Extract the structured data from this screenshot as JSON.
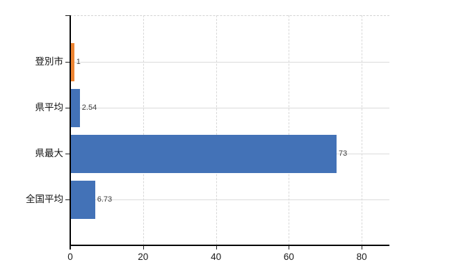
{
  "chart_data": {
    "type": "bar",
    "orientation": "horizontal",
    "title": "",
    "categories": [
      "登別市",
      "県平均",
      "県最大",
      "全国平均"
    ],
    "values": [
      1,
      2.54,
      73,
      6.73
    ],
    "value_labels": [
      "1",
      "2.54",
      "73",
      "6.73"
    ],
    "bar_colors": [
      "#ED8533",
      "#4372B7",
      "#4372B7",
      "#4372B7"
    ],
    "highlight_color": "#ED8533",
    "default_color": "#4372B7",
    "x_tick_labels": [
      "0",
      "20",
      "40",
      "60",
      "80"
    ],
    "x_tick_values": [
      0,
      20,
      40,
      60,
      80
    ],
    "xlim": [
      0,
      87.6
    ],
    "grid": true,
    "legend": false,
    "axis_color": "#000000",
    "gridline_color": "#DBDBDB",
    "background_color": "#FFFFFF"
  }
}
